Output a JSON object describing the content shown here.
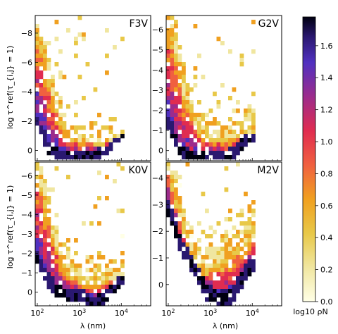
{
  "figure": {
    "ylabel": "log τ^ref(τ_{i,j} = 1)",
    "xlabel": "λ (nm)",
    "x_ticks": [
      "10^2",
      "10^3",
      "10^4"
    ],
    "colorbar": {
      "label": "log10 ρN",
      "ticks": [
        "0.0",
        "0.2",
        "0.4",
        "0.6",
        "0.8",
        "1.0",
        "1.2",
        "1.4",
        "1.6"
      ],
      "colors": [
        "#ffffe6",
        "#f0e6a0",
        "#e8c848",
        "#f0a020",
        "#f06040",
        "#e02c50",
        "#9c2c8c",
        "#5030c0",
        "#2a1870",
        "#000010"
      ]
    }
  },
  "chart_data": [
    {
      "type": "heatmap",
      "title": "F3V",
      "xlabel": "",
      "ylabel": "log τ^ref(τ_{i,j} = 1)",
      "x_log10_range": [
        1.95,
        4.7
      ],
      "ylim": [
        -9.2,
        0.7
      ],
      "y_inverted": true,
      "y_ticks": [
        "−8",
        "−6",
        "−4",
        "−2",
        "0"
      ],
      "x_tick_labels": [],
      "boundary": [
        [
          2.0,
          -8.5
        ],
        [
          2.2,
          -6.0
        ],
        [
          2.4,
          -3.2
        ],
        [
          2.6,
          -1.8
        ],
        [
          2.8,
          -0.9
        ],
        [
          3.1,
          -0.6
        ],
        [
          3.4,
          -0.5
        ],
        [
          3.7,
          -0.6
        ],
        [
          4.0,
          -1.0
        ]
      ],
      "floor": [
        [
          2.0,
          -2.0
        ],
        [
          2.3,
          0.0
        ],
        [
          2.6,
          0.2
        ],
        [
          3.0,
          0.3
        ],
        [
          3.3,
          0.3
        ],
        [
          3.6,
          0.0
        ],
        [
          3.9,
          -0.8
        ],
        [
          4.0,
          -1.2
        ]
      ]
    },
    {
      "type": "heatmap",
      "title": "G2V",
      "xlabel": "",
      "ylabel": "",
      "x_log10_range": [
        1.95,
        4.7
      ],
      "ylim": [
        -6.7,
        0.5
      ],
      "y_inverted": true,
      "y_ticks": [
        "−6",
        "−5",
        "−4",
        "−3",
        "−2",
        "−1",
        "0"
      ],
      "x_tick_labels": [],
      "boundary": [
        [
          2.0,
          -6.5
        ],
        [
          2.2,
          -4.5
        ],
        [
          2.4,
          -2.5
        ],
        [
          2.6,
          -1.5
        ],
        [
          2.8,
          -0.9
        ],
        [
          3.1,
          -0.6
        ],
        [
          3.4,
          -0.5
        ],
        [
          3.7,
          -0.6
        ],
        [
          4.0,
          -0.9
        ]
      ],
      "floor": [
        [
          2.0,
          -1.5
        ],
        [
          2.3,
          0.0
        ],
        [
          2.6,
          0.2
        ],
        [
          3.0,
          0.25
        ],
        [
          3.3,
          0.3
        ],
        [
          3.6,
          0.0
        ],
        [
          3.9,
          -0.7
        ],
        [
          4.0,
          -0.9
        ]
      ]
    },
    {
      "type": "heatmap",
      "title": "K0V",
      "xlabel": "λ (nm)",
      "ylabel": "log τ^ref(τ_{i,j} = 1)",
      "x_log10_range": [
        1.95,
        4.7
      ],
      "ylim": [
        -6.7,
        0.7
      ],
      "y_inverted": true,
      "y_ticks": [
        "−6",
        "−5",
        "−4",
        "−3",
        "−2",
        "−1",
        "0"
      ],
      "x_tick_labels": [
        "10^2",
        "10^3",
        "10^4"
      ],
      "boundary": [
        [
          2.0,
          -6.5
        ],
        [
          2.2,
          -4.5
        ],
        [
          2.4,
          -2.8
        ],
        [
          2.6,
          -1.5
        ],
        [
          2.8,
          -0.8
        ],
        [
          3.1,
          -0.4
        ],
        [
          3.4,
          -0.6
        ],
        [
          3.7,
          -0.5
        ],
        [
          4.0,
          -0.8
        ]
      ],
      "floor": [
        [
          2.0,
          -1.8
        ],
        [
          2.3,
          -0.5
        ],
        [
          2.6,
          0.0
        ],
        [
          3.0,
          0.0
        ],
        [
          3.3,
          0.5
        ],
        [
          3.5,
          0.3
        ],
        [
          3.8,
          -0.2
        ],
        [
          4.0,
          -0.8
        ]
      ]
    },
    {
      "type": "heatmap",
      "title": "M2V",
      "xlabel": "λ (nm)",
      "ylabel": "",
      "x_log10_range": [
        1.95,
        4.7
      ],
      "ylim": [
        -4.6,
        0.8
      ],
      "y_inverted": true,
      "y_ticks": [
        "−4",
        "−3",
        "−2",
        "−1",
        "0"
      ],
      "x_tick_labels": [
        "10^2",
        "10^3",
        "10^4"
      ],
      "boundary": [
        [
          2.0,
          -4.4
        ],
        [
          2.2,
          -3.0
        ],
        [
          2.4,
          -1.8
        ],
        [
          2.6,
          -1.0
        ],
        [
          2.8,
          -0.4
        ],
        [
          3.0,
          -0.6
        ],
        [
          3.3,
          -0.8
        ],
        [
          3.6,
          -1.2
        ],
        [
          3.9,
          -1.4
        ],
        [
          4.0,
          -1.8
        ]
      ],
      "floor": [
        [
          2.0,
          -3.0
        ],
        [
          2.3,
          -1.5
        ],
        [
          2.6,
          -0.8
        ],
        [
          2.9,
          0.2
        ],
        [
          3.2,
          0.5
        ],
        [
          3.5,
          0.4
        ],
        [
          3.7,
          -0.2
        ],
        [
          4.0,
          -0.8
        ]
      ]
    }
  ]
}
